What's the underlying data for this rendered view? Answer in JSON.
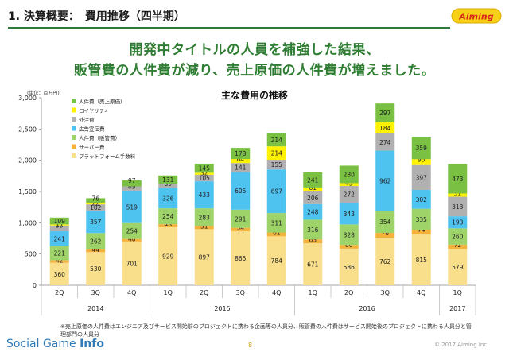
{
  "header": {
    "title": "1. 決算概要：　費用推移（四半期）",
    "logo_text": "Aiming"
  },
  "headline": {
    "line1": "開発中タイトルの人員を補強した結果、",
    "line2": "販管費の人件費が減り、売上原価の人件費が増えました。"
  },
  "footnote": "※売上原価の人件費はエンジニア及びサービス開始前のプロジェクトに携わる企画等の人員分、販管費の人件費はサービス開始後のプロジェクトに携わる人員分と管理部門の人員分",
  "footer": {
    "brand_plain": "Social Game ",
    "brand_bold": "Info",
    "page": "8",
    "copyright": "© 2017 Aiming Inc."
  },
  "colors": {
    "accent_green": "#2e7d32"
  },
  "chart_data": {
    "type": "bar",
    "stacked": true,
    "title": "主な費用の推移",
    "unit_label": "(単位：百万円)",
    "ylim": [
      0,
      3000
    ],
    "yticks": [
      "0",
      "500",
      "1,000",
      "1,500",
      "2,000",
      "2,500",
      "3,000"
    ],
    "grid": false,
    "legend_position": "top-left",
    "categories": [
      "2Q",
      "3Q",
      "4Q",
      "1Q",
      "2Q",
      "3Q",
      "4Q",
      "1Q",
      "2Q",
      "3Q",
      "4Q",
      "1Q"
    ],
    "years": [
      {
        "label": "2014",
        "span": 3
      },
      {
        "label": "2015",
        "span": 4
      },
      {
        "label": "2016",
        "span": 4
      },
      {
        "label": "2017",
        "span": 1
      }
    ],
    "series": [
      {
        "name": "プラットフォーム手数料",
        "color": "#f9df8c",
        "values": [
          360,
          530,
          701,
          929,
          897,
          865,
          784,
          671,
          586,
          762,
          815,
          579
        ]
      },
      {
        "name": "サーバー費",
        "color": "#f5b23a",
        "values": [
          42,
          44,
          40,
          48,
          51,
          54,
          61,
          63,
          60,
          76,
          74,
          72
        ]
      },
      {
        "name": "人件費（販管費）",
        "color": "#9ed36a",
        "values": [
          221,
          262,
          254,
          254,
          283,
          291,
          311,
          316,
          328,
          354,
          335,
          260
        ]
      },
      {
        "name": "広告宣伝費",
        "color": "#4fc3f0",
        "values": [
          241,
          357,
          519,
          326,
          433,
          605,
          697,
          248,
          343,
          962,
          302,
          193
        ]
      },
      {
        "name": "外注費",
        "color": "#b0b0b0",
        "values": [
          93,
          102,
          69,
          69,
          105,
          141,
          155,
          206,
          272,
          274,
          397,
          313
        ]
      },
      {
        "name": "ロイヤリティ",
        "color": "#fff200",
        "values": [
          17,
          22,
          0,
          0,
          32,
          64,
          214,
          61,
          45,
          184,
          95,
          51
        ]
      },
      {
        "name": "人件費（売上原価）",
        "color": "#7ac143",
        "values": [
          109,
          76,
          97,
          131,
          145,
          178,
          214,
          241,
          280,
          297,
          359,
          473
        ]
      }
    ]
  }
}
